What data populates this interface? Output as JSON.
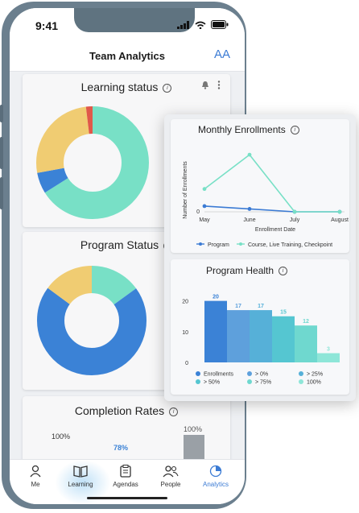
{
  "status_bar": {
    "time": "9:41"
  },
  "header": {
    "title": "Team Analytics",
    "font_size_label": "AA"
  },
  "learning_status": {
    "title": "Learning status",
    "chart_data": {
      "type": "pie",
      "slices": [
        {
          "color": "#78e0c6",
          "value": 66
        },
        {
          "color": "#3b82d6",
          "value": 6
        },
        {
          "color": "#f0cc72",
          "value": 26
        },
        {
          "color": "#e0584a",
          "value": 2
        }
      ]
    }
  },
  "program_status": {
    "title": "Program Status",
    "chart_data": {
      "type": "pie",
      "slices": [
        {
          "color": "#78e0c6",
          "value": 15
        },
        {
          "color": "#3b82d6",
          "value": 70
        },
        {
          "color": "#f0cc72",
          "value": 15
        }
      ]
    }
  },
  "completion_rates": {
    "title": "Completion Rates",
    "left_label": "100%",
    "bar_label_1": "78%",
    "bar_label_2": "100%"
  },
  "monthly_enrollments": {
    "title": "Monthly Enrollments",
    "chart_data": {
      "type": "line",
      "x": [
        "May",
        "June",
        "July",
        "August"
      ],
      "series": [
        {
          "name": "Program",
          "values": [
            2,
            1,
            0,
            0
          ],
          "color": "#3b7bd4"
        },
        {
          "name": "Course, Live Training, Checkpoint",
          "values": [
            8,
            20,
            0,
            0
          ],
          "color": "#78e0c6"
        }
      ],
      "xlabel": "Enrollment Date",
      "ylabel": "Number of Enrollments",
      "y_tick": "0",
      "ylim": [
        0,
        22
      ]
    }
  },
  "program_health": {
    "title": "Program Health",
    "chart_data": {
      "type": "bar",
      "values": [
        20,
        17,
        17,
        15,
        12,
        3
      ],
      "value_labels": [
        "20",
        "17",
        "17",
        "15",
        "12",
        "3"
      ],
      "colors": [
        "#3b82d6",
        "#5ea0dc",
        "#56b0d8",
        "#55c6d1",
        "#6fd8cf",
        "#8ee6d8"
      ],
      "yticks": [
        "20",
        "10",
        "0"
      ],
      "ylim": [
        0,
        22
      ],
      "legend": [
        "Enrollments",
        "> 0%",
        "> 25%",
        "> 50%",
        "> 75%",
        "100%"
      ]
    }
  },
  "nav": {
    "me": "Me",
    "learning": "Learning",
    "agendas": "Agendas",
    "people": "People",
    "analytics": "Analytics"
  }
}
